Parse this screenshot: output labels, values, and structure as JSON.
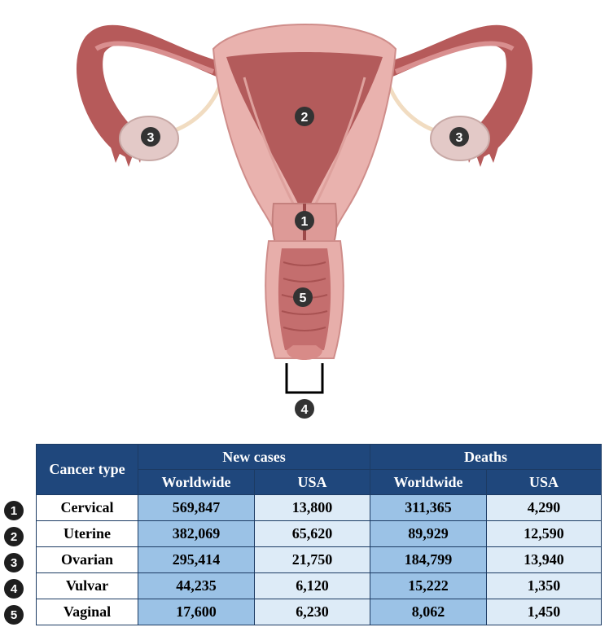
{
  "diagram": {
    "markers": [
      {
        "id": "cervix",
        "label": "1"
      },
      {
        "id": "uterus",
        "label": "2"
      },
      {
        "id": "ovary-left",
        "label": "3"
      },
      {
        "id": "ovary-right",
        "label": "3"
      },
      {
        "id": "vulva",
        "label": "4"
      },
      {
        "id": "vagina",
        "label": "5"
      }
    ],
    "colors": {
      "tissue": "#d98f8f",
      "tissue_light": "#eab3b0",
      "cavity": "#b15a5a",
      "tube": "#b95b5b",
      "ovary": "#e2c8c6",
      "ligament": "#f2dfc3",
      "marker": "#333333"
    }
  },
  "table": {
    "header": {
      "cancer_type": "Cancer type",
      "new_cases": "New cases",
      "deaths": "Deaths",
      "worldwide": "Worldwide",
      "usa": "USA",
      "worldwide_2": "Worldwide",
      "usa_2": "USA"
    },
    "rows": [
      {
        "badge": "1",
        "type": "Cervical",
        "new_worldwide": "569,847",
        "new_usa": "13,800",
        "deaths_worldwide": "311,365",
        "deaths_usa": "4,290"
      },
      {
        "badge": "2",
        "type": "Uterine",
        "new_worldwide": "382,069",
        "new_usa": "65,620",
        "deaths_worldwide": "89,929",
        "deaths_usa": "12,590"
      },
      {
        "badge": "3",
        "type": "Ovarian",
        "new_worldwide": "295,414",
        "new_usa": "21,750",
        "deaths_worldwide": "184,799",
        "deaths_usa": "13,940"
      },
      {
        "badge": "4",
        "type": "Vulvar",
        "new_worldwide": "44,235",
        "new_usa": "6,120",
        "deaths_worldwide": "15,222",
        "deaths_usa": "1,350"
      },
      {
        "badge": "5",
        "type": "Vaginal",
        "new_worldwide": "17,600",
        "new_usa": "6,230",
        "deaths_worldwide": "8,062",
        "deaths_usa": "1,450"
      }
    ],
    "colors": {
      "header_bg": "#1f477c",
      "col_dark": "#9bc2e6",
      "col_light": "#ddebf7"
    }
  }
}
